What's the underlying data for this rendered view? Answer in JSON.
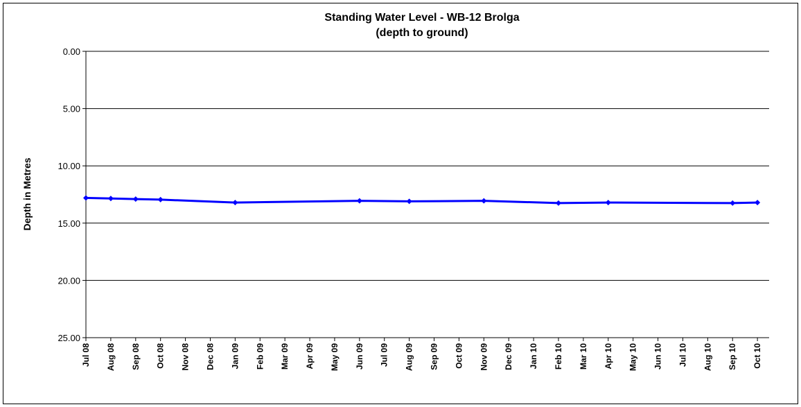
{
  "chart_data": {
    "type": "line",
    "title": "Standing Water Level - WB-12 Brolga",
    "subtitle": "(depth to ground)",
    "y_label": "Depth in Metres",
    "y_inverted": true,
    "grid": true,
    "x": [
      "2008-07",
      "2008-08",
      "2008-09",
      "2008-10",
      "2009-01",
      "2009-06",
      "2009-08",
      "2009-11",
      "2010-02",
      "2010-04",
      "2010-09",
      "2010-10"
    ],
    "series": [
      {
        "name": "Standing Water Level",
        "color": "#0000ff",
        "values": [
          12.8,
          12.85,
          12.9,
          12.95,
          13.2,
          13.05,
          13.1,
          13.05,
          13.25,
          13.2,
          13.25,
          13.2
        ]
      }
    ],
    "ylim": [
      0,
      25
    ],
    "yticks": [
      {
        "value": 0,
        "label": "0.00"
      },
      {
        "value": 5,
        "label": "5.00"
      },
      {
        "value": 10,
        "label": "10.00"
      },
      {
        "value": 15,
        "label": "15.00"
      },
      {
        "value": 20,
        "label": "20.00"
      },
      {
        "value": 25,
        "label": "25.00"
      }
    ],
    "xlim": [
      "2008-07",
      "2010-10"
    ],
    "xticks": [
      {
        "value": "2008-07",
        "label": "Jul 08"
      },
      {
        "value": "2008-08",
        "label": "Aug 08"
      },
      {
        "value": "2008-09",
        "label": "Sep 08"
      },
      {
        "value": "2008-10",
        "label": "Oct 08"
      },
      {
        "value": "2008-11",
        "label": "Nov 08"
      },
      {
        "value": "2008-12",
        "label": "Dec 08"
      },
      {
        "value": "2009-01",
        "label": "Jan 09"
      },
      {
        "value": "2009-02",
        "label": "Feb 09"
      },
      {
        "value": "2009-03",
        "label": "Mar 09"
      },
      {
        "value": "2009-04",
        "label": "Apr 09"
      },
      {
        "value": "2009-05",
        "label": "May 09"
      },
      {
        "value": "2009-06",
        "label": "Jun 09"
      },
      {
        "value": "2009-07",
        "label": "Jul 09"
      },
      {
        "value": "2009-08",
        "label": "Aug 09"
      },
      {
        "value": "2009-09",
        "label": "Sep 09"
      },
      {
        "value": "2009-10",
        "label": "Oct 09"
      },
      {
        "value": "2009-11",
        "label": "Nov 09"
      },
      {
        "value": "2009-12",
        "label": "Dec 09"
      },
      {
        "value": "2010-01",
        "label": "Jan 10"
      },
      {
        "value": "2010-02",
        "label": "Feb 10"
      },
      {
        "value": "2010-03",
        "label": "Mar 10"
      },
      {
        "value": "2010-04",
        "label": "Apr 10"
      },
      {
        "value": "2010-05",
        "label": "May 10"
      },
      {
        "value": "2010-06",
        "label": "Jun 10"
      },
      {
        "value": "2010-07",
        "label": "Jul 10"
      },
      {
        "value": "2010-08",
        "label": "Aug 10"
      },
      {
        "value": "2010-09",
        "label": "Sep 10"
      },
      {
        "value": "2010-10",
        "label": "Oct 10"
      }
    ]
  }
}
